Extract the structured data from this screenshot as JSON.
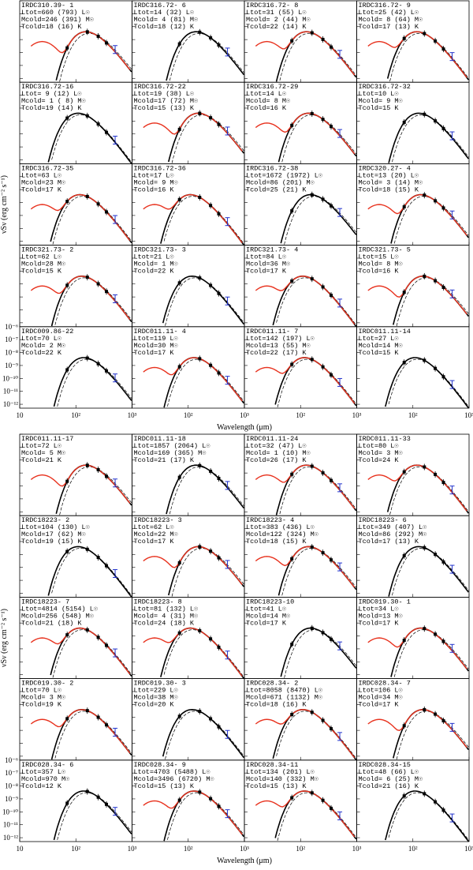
{
  "chart_data": [
    {
      "type": "sed-grid",
      "log_x": true,
      "log_y": true,
      "x_label": "Wavelength (μm)",
      "y_label": "νSν (erg cm⁻² s⁻¹)",
      "xlim": [
        10,
        1000
      ],
      "xticks": [
        10,
        {
          "value": 100,
          "label": "10²"
        },
        {
          "value": 1000,
          "label": "10³"
        }
      ],
      "ylim": [
        5e-13,
        1e-06
      ],
      "yticks": [
        {
          "value": 1e-06,
          "label": "10⁻⁶"
        },
        {
          "value": 1e-07,
          "label": "10⁻⁷"
        },
        {
          "value": 1e-08,
          "label": "10⁻⁸"
        },
        {
          "value": 1e-09,
          "label": "10⁻⁹"
        },
        {
          "value": 1e-10,
          "label": "10⁻¹⁰"
        },
        {
          "value": 1e-11,
          "label": "10⁻¹¹"
        },
        {
          "value": 1e-12,
          "label": "10⁻¹²"
        }
      ],
      "panels": [
        {
          "name": "IRDC310.39- 1",
          "L": "Ltot=660 (793) L☉",
          "M": "Mcold=246 (391) M☉",
          "T": "Tcold=18 (16) K"
        },
        {
          "name": "IRDC316.72- 6",
          "L": "Ltot=14 (32) L☉",
          "M": "Mcold= 4 (81) M☉",
          "T": "Tcold=18 (12) K"
        },
        {
          "name": "IRDC316.72- 8",
          "L": "Ltot=31 (55) L☉",
          "M": "Mcold= 2 (44) M☉",
          "T": "Tcold=22 (14) K"
        },
        {
          "name": "IRDC316.72- 9",
          "L": "Ltot=25 (42) L☉",
          "M": "Mcold= 8 (64) M☉",
          "T": "Tcold=17 (13) K"
        },
        {
          "name": "IRDC316.72-16",
          "L": "Ltot= 9 (12) L☉",
          "M": "Mcold= 1 ( 8) M☉",
          "T": "Tcold=19 (14) K"
        },
        {
          "name": "IRDC316.72-22",
          "L": "Ltot=19 (38) L☉",
          "M": "Mcold=17 (72) M☉",
          "T": "Tcold=15 (13) K"
        },
        {
          "name": "IRDC316.72-29",
          "L": "Ltot=14 L☉",
          "M": "Mcold= 8 M☉",
          "T": "Tcold=16 K"
        },
        {
          "name": "IRDC316.72-32",
          "L": "Ltot=10 L☉",
          "M": "Mcold= 9 M☉",
          "T": "Tcold=15 K"
        },
        {
          "name": "IRDC316.72-35",
          "L": "Ltot=63 L☉",
          "M": "Mcold=23 M☉",
          "T": "Tcold=17 K"
        },
        {
          "name": "IRDC316.72-36",
          "L": "Ltot=17 L☉",
          "M": "Mcold= 9 M☉",
          "T": "Tcold=16 K"
        },
        {
          "name": "IRDC316.72-38",
          "L": "Ltot=1672 (1972) L☉",
          "M": "Mcold=86 (201) M☉",
          "T": "Tcold=25 (21) K"
        },
        {
          "name": "IRDC320.27- 4",
          "L": "Ltot=13 (20) L☉",
          "M": "Mcold= 3 (14) M☉",
          "T": "Tcold=18 (15) K"
        },
        {
          "name": "IRDC321.73- 2",
          "L": "Ltot=62 L☉",
          "M": "Mcold=28 M☉",
          "T": "Tcold=15 K"
        },
        {
          "name": "IRDC321.73- 3",
          "L": "Ltot=21 L☉",
          "M": "Mcold= 1 M☉",
          "T": "Tcold=22 K"
        },
        {
          "name": "IRDC321.73- 4",
          "L": "Ltot=84 L☉",
          "M": "Mcold=36 M☉",
          "T": "Tcold=17 K"
        },
        {
          "name": "IRDC321.73- 5",
          "L": "Ltot=15 L☉",
          "M": "Mcold= 8 M☉",
          "T": "Tcold=16 K"
        },
        {
          "name": "IRDC009.86-22",
          "L": "Ltot=70 L☉",
          "M": "Mcold= 2 M☉",
          "T": "Tcold=22 K"
        },
        {
          "name": "IRDC011.11- 4",
          "L": "Ltot=119 L☉",
          "M": "Mcold=30 M☉",
          "T": "Tcold=17 K"
        },
        {
          "name": "IRDC011.11- 7",
          "L": "Ltot=142 (197) L☉",
          "M": "Mcold=13 (55) M☉",
          "T": "Tcold=22 (17) K"
        },
        {
          "name": "IRDC011.11-14",
          "L": "Ltot=27 L☉",
          "M": "Mcold=14 M☉",
          "T": "Tcold=15 K"
        }
      ]
    },
    {
      "type": "sed-grid",
      "log_x": true,
      "log_y": true,
      "x_label": "Wavelength (μm)",
      "y_label": "νSν (erg cm⁻² s⁻¹)",
      "xlim": [
        10,
        1000
      ],
      "xticks": [
        10,
        {
          "value": 100,
          "label": "10²"
        },
        {
          "value": 1000,
          "label": "10³"
        }
      ],
      "ylim": [
        5e-13,
        1e-06
      ],
      "yticks": [
        {
          "value": 1e-06,
          "label": "10⁻⁶"
        },
        {
          "value": 1e-07,
          "label": "10⁻⁷"
        },
        {
          "value": 1e-08,
          "label": "10⁻⁸"
        },
        {
          "value": 1e-09,
          "label": "10⁻⁹"
        },
        {
          "value": 1e-10,
          "label": "10⁻¹⁰"
        },
        {
          "value": 1e-11,
          "label": "10⁻¹¹"
        },
        {
          "value": 1e-12,
          "label": "10⁻¹²"
        }
      ],
      "panels": [
        {
          "name": "IRDC011.11-17",
          "L": "Ltot=72 L☉",
          "M": "Mcold= 5 M☉",
          "T": "Tcold=21 K"
        },
        {
          "name": "IRDC011.11-18",
          "L": "Ltot=1857 (2064) L☉",
          "M": "Mcold=169 (365) M☉",
          "T": "Tcold=21 (17) K"
        },
        {
          "name": "IRDC011.11-24",
          "L": "Ltot=32 (47) L☉",
          "M": "Mcold= 1 (10) M☉",
          "T": "Tcold=26 (17) K"
        },
        {
          "name": "IRDC011.11-33",
          "L": "Ltot=80 L☉",
          "M": "Mcold= 3 M☉",
          "T": "Tcold=24 K"
        },
        {
          "name": "IRDC18223- 2",
          "L": "Ltot=104 (130) L☉",
          "M": "Mcold=17 (62) M☉",
          "T": "Tcold=19 (15) K"
        },
        {
          "name": "IRDC18223- 3",
          "L": "Ltot=62 L☉",
          "M": "Mcold=22 M☉",
          "T": "Tcold=17 K"
        },
        {
          "name": "IRDC18223- 4",
          "L": "Ltot=383 (436) L☉",
          "M": "Mcold=122 (324) M☉",
          "T": "Tcold=18 (15) K"
        },
        {
          "name": "IRDC18223- 6",
          "L": "Ltot=349 (407) L☉",
          "M": "Mcold=86 (292) M☉",
          "T": "Tcold=17 (13) K"
        },
        {
          "name": "IRDC18223- 7",
          "L": "Ltot=4814 (5154) L☉",
          "M": "Mcold=256 (548) M☉",
          "T": "Tcold=21 (18) K"
        },
        {
          "name": "IRDC18223- 8",
          "L": "Ltot=81 (132) L☉",
          "M": "Mcold= 4 (31) M☉",
          "T": "Tcold=24 (18) K"
        },
        {
          "name": "IRDC18223-10",
          "L": "Ltot=41 L☉",
          "M": "Mcold=14 M☉",
          "T": "Tcold=17 K"
        },
        {
          "name": "IRDC019.30- 1",
          "L": "Ltot=34 L☉",
          "M": "Mcold=13 M☉",
          "T": "Tcold=17 K"
        },
        {
          "name": "IRDC019.30- 2",
          "L": "Ltot=70 L☉",
          "M": "Mcold= 3 M☉",
          "T": "Tcold=19 K"
        },
        {
          "name": "IRDC019.30- 3",
          "L": "Ltot=229 L☉",
          "M": "Mcold=38 M☉",
          "T": "Tcold=20 K"
        },
        {
          "name": "IRDC028.34- 2",
          "L": "Ltot=8058 (8470) L☉",
          "M": "Mcold=671 (1132) M☉",
          "T": "Tcold=18 (16) K"
        },
        {
          "name": "IRDC028.34- 7",
          "L": "Ltot=106 L☉",
          "M": "Mcold=34 M☉",
          "T": "Tcold=17 K"
        },
        {
          "name": "IRDC028.34- 6",
          "L": "Ltot=357 L☉",
          "M": "Mcold=970 M☉",
          "T": "Tcold=12 K"
        },
        {
          "name": "IRDC028.34- 9",
          "L": "Ltot=4703 (5488) L☉",
          "M": "Mcold=3496 (6720) M☉",
          "T": "Tcold=15 (13) K"
        },
        {
          "name": "IRDC028.34-11",
          "L": "Ltot=134 (201) L☉",
          "M": "Mcold=140 (332) M☉",
          "T": "Tcold=15 (13) K"
        },
        {
          "name": "IRDC028.34-15",
          "L": "Ltot=48 (66) L☉",
          "M": "Mcold= 6 (25) M☉",
          "T": "Tcold=21 (16) K"
        }
      ]
    }
  ]
}
